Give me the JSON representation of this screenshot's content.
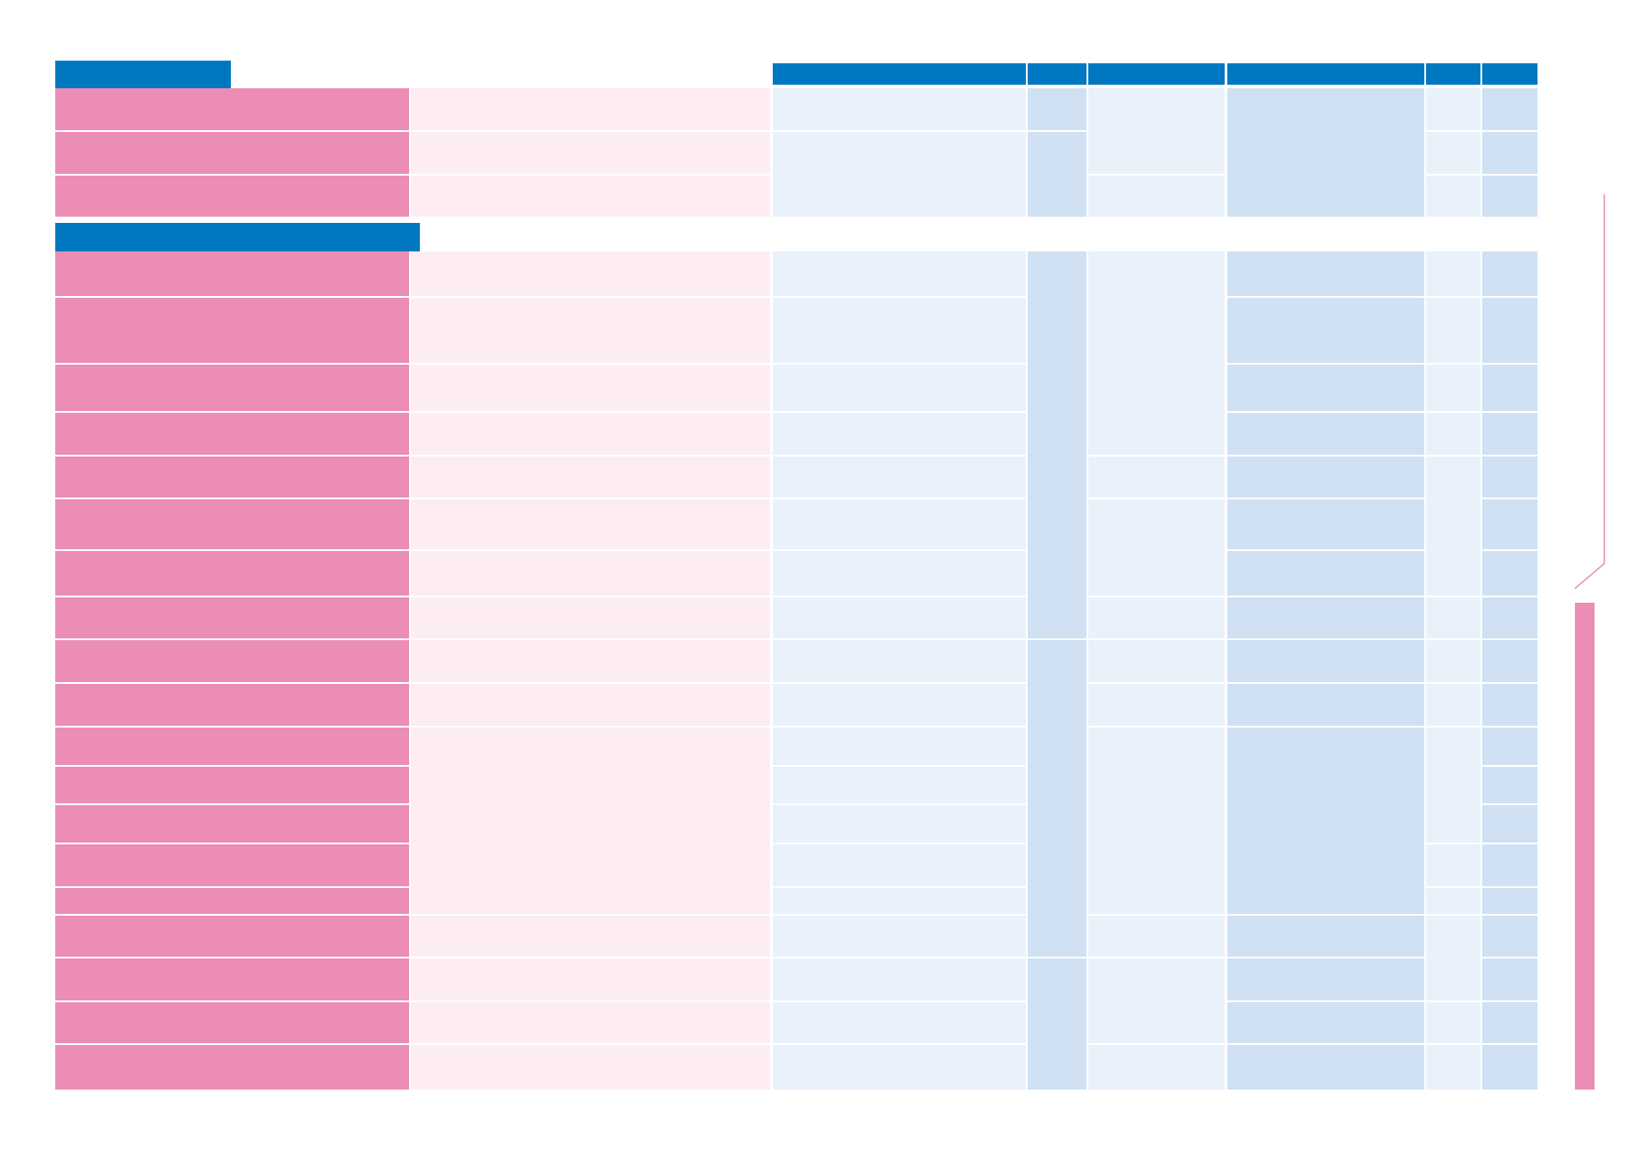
{
  "document": {
    "kind": "blank comparison table (no visible text)",
    "colors": {
      "row_label": "#ec8db5",
      "row_label_light": "#fdedf2",
      "cell_light": "#e9f2fb",
      "cell_mid": "#d0e1f3",
      "header": "#0077c1",
      "page_background": "#ffffff"
    },
    "section_headers": 2,
    "columns_right": 6,
    "rows_section_1": 3,
    "rows_section_2": 19
  }
}
